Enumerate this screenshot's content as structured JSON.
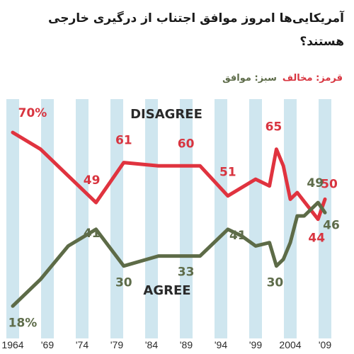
{
  "title": "آمریکایی‌ها امروز موافق اجتناب از درگیری خارجی هستند؟",
  "legend": {
    "red_label": "قرمز: مخالف",
    "green_label": "سبز: موافق"
  },
  "colors": {
    "disagree": "#e0333f",
    "agree": "#5d6b47",
    "stripe": "#cfe6ef",
    "disagree_label": "#d8343f",
    "agree_label": "#5e6c4a"
  },
  "chart_data": {
    "type": "line",
    "title": "آمریکایی‌ها امروز موافق اجتناب از درگیری خارجی هستند؟",
    "xlabel": "",
    "ylabel": "",
    "xlim": [
      1964,
      2009
    ],
    "ylim": [
      10,
      80
    ],
    "x_tick_labels": [
      {
        "year": 1964,
        "label": "1964"
      },
      {
        "year": 1969,
        "label": "'69"
      },
      {
        "year": 1974,
        "label": "'74"
      },
      {
        "year": 1979,
        "label": "'79"
      },
      {
        "year": 1984,
        "label": "'84"
      },
      {
        "year": 1989,
        "label": "'89"
      },
      {
        "year": 1994,
        "label": "'94"
      },
      {
        "year": 1999,
        "label": "'99"
      },
      {
        "year": 2004,
        "label": "2004"
      },
      {
        "year": 2009,
        "label": "'09"
      }
    ],
    "grid": false,
    "series": [
      {
        "name": "DISAGREE",
        "color": "#e0333f",
        "points": [
          [
            1964,
            70
          ],
          [
            1968,
            65
          ],
          [
            1972,
            57
          ],
          [
            1976,
            49
          ],
          [
            1980,
            61
          ],
          [
            1985,
            60
          ],
          [
            1991,
            60
          ],
          [
            1995,
            51
          ],
          [
            1999,
            56
          ],
          [
            2001,
            54
          ],
          [
            2002,
            65
          ],
          [
            2003,
            60
          ],
          [
            2004,
            50
          ],
          [
            2005,
            52
          ],
          [
            2008,
            44
          ],
          [
            2009,
            50
          ]
        ]
      },
      {
        "name": "AGREE",
        "color": "#5d6b47",
        "points": [
          [
            1964,
            18
          ],
          [
            1968,
            26
          ],
          [
            1972,
            36
          ],
          [
            1976,
            41
          ],
          [
            1980,
            30
          ],
          [
            1985,
            33
          ],
          [
            1991,
            33
          ],
          [
            1995,
            41
          ],
          [
            1997,
            39
          ],
          [
            1999,
            36
          ],
          [
            2001,
            37
          ],
          [
            2002,
            30
          ],
          [
            2003,
            32
          ],
          [
            2004,
            37
          ],
          [
            2005,
            45
          ],
          [
            2006,
            45
          ],
          [
            2008,
            49
          ],
          [
            2009,
            46
          ]
        ]
      }
    ],
    "data_labels": [
      {
        "series": "DISAGREE",
        "text": "70%",
        "x": 1964,
        "y": 70
      },
      {
        "series": "DISAGREE",
        "text": "49",
        "x": 1976,
        "y": 49
      },
      {
        "series": "DISAGREE",
        "text": "61",
        "x": 1980,
        "y": 61
      },
      {
        "series": "DISAGREE",
        "text": "60",
        "x": 1991,
        "y": 60
      },
      {
        "series": "DISAGREE",
        "text": "51",
        "x": 1995,
        "y": 51
      },
      {
        "series": "DISAGREE",
        "text": "65",
        "x": 2002,
        "y": 65
      },
      {
        "series": "DISAGREE",
        "text": "44",
        "x": 2008,
        "y": 44
      },
      {
        "series": "DISAGREE",
        "text": "50",
        "x": 2009,
        "y": 50
      },
      {
        "series": "AGREE",
        "text": "18%",
        "x": 1964,
        "y": 18
      },
      {
        "series": "AGREE",
        "text": "41",
        "x": 1976,
        "y": 41
      },
      {
        "series": "AGREE",
        "text": "30",
        "x": 1980,
        "y": 30
      },
      {
        "series": "AGREE",
        "text": "33",
        "x": 1991,
        "y": 33
      },
      {
        "series": "AGREE",
        "text": "41",
        "x": 1995,
        "y": 41
      },
      {
        "series": "AGREE",
        "text": "30",
        "x": 2002,
        "y": 30
      },
      {
        "series": "AGREE",
        "text": "49",
        "x": 2008,
        "y": 49
      },
      {
        "series": "AGREE",
        "text": "46",
        "x": 2009,
        "y": 46
      }
    ]
  }
}
